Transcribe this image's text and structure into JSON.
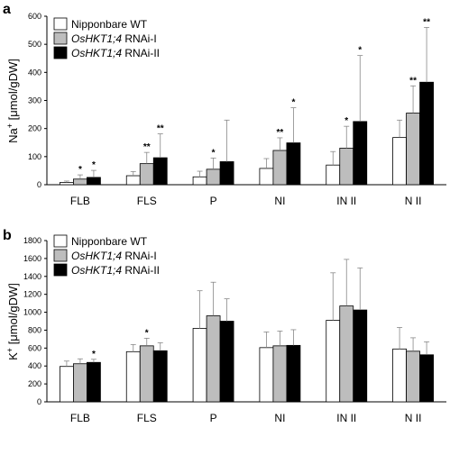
{
  "chart_data": [
    {
      "type": "bar",
      "panel": "a",
      "ylabel_main": "Na",
      "ylabel_sup": "+",
      "ylabel_unit": " [μmol/gDW]",
      "ylim": [
        0,
        600
      ],
      "yticks": [
        "0",
        "100",
        "200",
        "300",
        "400",
        "500",
        "600"
      ],
      "categories": [
        "FLB",
        "FLS",
        "P",
        "NI",
        "IN II",
        "N II"
      ],
      "legend_position": "top-left",
      "series": [
        {
          "name_pre": "Nipponbare WT",
          "name_italic": "",
          "name_post": "",
          "color": "#ffffff",
          "values": [
            8,
            32,
            28,
            58,
            70,
            168
          ],
          "errors": [
            5,
            15,
            20,
            35,
            48,
            62
          ],
          "sig": [
            "",
            "",
            "",
            "",
            "",
            ""
          ]
        },
        {
          "name_pre": "",
          "name_italic": "OsHKT1;4",
          "name_post": " RNAi-I",
          "color": "#bdbdbd",
          "values": [
            20,
            75,
            55,
            122,
            130,
            255
          ],
          "errors": [
            15,
            40,
            40,
            45,
            78,
            97
          ],
          "sig": [
            "*",
            "**",
            "*",
            "**",
            "*",
            "**"
          ]
        },
        {
          "name_pre": "",
          "name_italic": "OsHKT1;4",
          "name_post": " RNAi-II",
          "color": "#000000",
          "values": [
            26,
            96,
            82,
            149,
            225,
            365
          ],
          "errors": [
            25,
            85,
            148,
            125,
            235,
            195
          ],
          "sig": [
            "*",
            "**",
            "",
            "*",
            "*",
            "**"
          ]
        }
      ]
    },
    {
      "type": "bar",
      "panel": "b",
      "ylabel_main": "K",
      "ylabel_sup": "+",
      "ylabel_unit": " [μmol/gDW]",
      "ylim": [
        0,
        1800
      ],
      "yticks": [
        "0",
        "200",
        "400",
        "600",
        "800",
        "1000",
        "1200",
        "1400",
        "1600",
        "1800"
      ],
      "categories": [
        "FLB",
        "FLS",
        "P",
        "NI",
        "IN II",
        "N II"
      ],
      "legend_position": "top-left",
      "series": [
        {
          "name_pre": "Nipponbare WT",
          "name_italic": "",
          "name_post": "",
          "color": "#ffffff",
          "values": [
            395,
            560,
            820,
            605,
            910,
            590
          ],
          "errors": [
            60,
            80,
            420,
            175,
            530,
            240
          ],
          "sig": [
            "",
            "",
            "",
            "",
            "",
            ""
          ]
        },
        {
          "name_pre": "",
          "name_italic": "OsHKT1;4",
          "name_post": " RNAi-I",
          "color": "#bdbdbd",
          "values": [
            425,
            625,
            960,
            625,
            1070,
            565
          ],
          "errors": [
            55,
            85,
            375,
            165,
            520,
            150
          ],
          "sig": [
            "",
            "*",
            "",
            "",
            "",
            ""
          ]
        },
        {
          "name_pre": "",
          "name_italic": "OsHKT1;4",
          "name_post": " RNAi-II",
          "color": "#000000",
          "values": [
            440,
            570,
            900,
            630,
            1025,
            525
          ],
          "errors": [
            35,
            90,
            250,
            175,
            470,
            145
          ],
          "sig": [
            "*",
            "",
            "",
            "",
            "",
            ""
          ]
        }
      ]
    }
  ]
}
